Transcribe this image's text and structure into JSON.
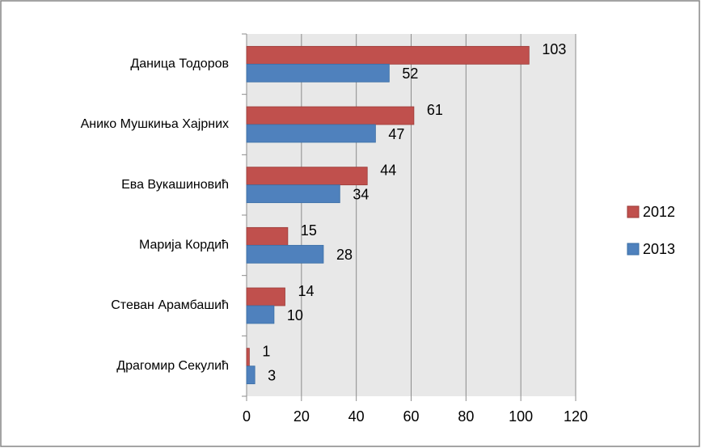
{
  "chart_data": {
    "type": "bar",
    "orientation": "horizontal",
    "categories": [
      "Даница Тодоров",
      "Анико Мушкиња Хајрних",
      "Ева Вукашиновић",
      "Марија Кордић",
      "Стеван Арамбашић",
      "Драгомир Секулић"
    ],
    "series": [
      {
        "name": "2012",
        "color": "#c0504d",
        "values": [
          103,
          61,
          44,
          15,
          14,
          1
        ]
      },
      {
        "name": "2013",
        "color": "#4f81bd",
        "values": [
          52,
          47,
          34,
          28,
          10,
          3
        ]
      }
    ],
    "xlim": [
      0,
      120
    ],
    "xticks": [
      0,
      20,
      40,
      60,
      80,
      100,
      120
    ],
    "grid": true,
    "legend": "right"
  }
}
